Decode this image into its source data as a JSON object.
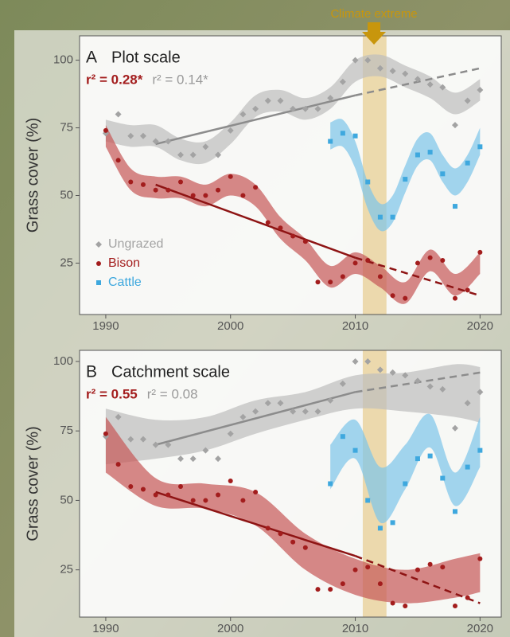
{
  "chart_data": [
    {
      "type": "scatter",
      "panel_label": "A",
      "title": "Plot scale",
      "y_label": "Grass cover (%)",
      "xlim": [
        1987.9,
        2021.7
      ],
      "ylim": [
        6,
        109
      ],
      "xticks": [
        1990,
        2000,
        2010,
        2020
      ],
      "yticks": [
        25,
        50,
        75,
        100
      ],
      "annotation": {
        "text": "Climate extreme",
        "x": 2011.5,
        "color": "#c8960c"
      },
      "highlight": {
        "x": [
          2010.6,
          2012.5
        ],
        "color": "#e8cf94"
      },
      "legend": true,
      "x": [
        1990,
        1991,
        1992,
        1993,
        1994,
        1995,
        1996,
        1997,
        1998,
        1999,
        2000,
        2001,
        2002,
        2003,
        2004,
        2005,
        2006,
        2007,
        2008,
        2009,
        2010,
        2011,
        2012,
        2013,
        2014,
        2015,
        2016,
        2017,
        2018,
        2019,
        2020
      ],
      "series": [
        {
          "name": "Ungrazed",
          "color": "#a3a3a3",
          "marker": "diamond",
          "values": [
            73,
            80,
            72,
            72,
            70,
            70,
            65,
            65,
            68,
            65,
            74,
            80,
            82,
            85,
            85,
            82,
            82,
            82,
            86,
            92,
            100,
            100,
            97,
            96,
            95,
            93,
            91,
            90,
            76,
            85,
            89
          ]
        },
        {
          "name": "Bison",
          "color": "#a31d1d",
          "marker": "circle",
          "values": [
            74,
            63,
            55,
            54,
            52,
            52,
            55,
            50,
            50,
            52,
            57,
            50,
            53,
            40,
            38,
            35,
            33,
            18,
            18,
            20,
            25,
            26,
            20,
            13,
            12,
            25,
            27,
            26,
            12,
            15,
            29
          ]
        },
        {
          "name": "Cattle",
          "color": "#3ea8de",
          "marker": "square",
          "values": [
            null,
            null,
            null,
            null,
            null,
            null,
            null,
            null,
            null,
            null,
            null,
            null,
            null,
            null,
            null,
            null,
            null,
            null,
            70,
            73,
            72,
            55,
            42,
            42,
            56,
            65,
            66,
            58,
            46,
            62,
            68
          ]
        }
      ],
      "bands": [
        {
          "color": "#bdbdbd",
          "x": [
            1990,
            1992,
            1994,
            1996,
            1998,
            2000,
            2002,
            2004,
            2006,
            2008,
            2010,
            2012,
            2014,
            2016,
            2018,
            2020
          ],
          "lower": [
            70,
            68,
            68,
            63,
            62,
            69,
            79,
            81,
            78,
            82,
            92,
            94,
            90,
            86,
            80,
            85
          ],
          "upper": [
            78,
            76,
            76,
            71,
            70,
            77,
            87,
            89,
            86,
            90,
            100,
            102,
            98,
            94,
            88,
            93
          ]
        },
        {
          "color": "#c65757",
          "x": [
            1990,
            1992,
            1994,
            1996,
            1998,
            2000,
            2002,
            2004,
            2006,
            2008,
            2010,
            2012,
            2014,
            2016,
            2018,
            2020
          ],
          "lower": [
            68,
            52,
            49,
            49,
            46,
            50,
            46,
            34,
            26,
            16,
            21,
            16,
            10,
            22,
            13,
            21
          ],
          "upper": [
            76,
            60,
            57,
            57,
            54,
            58,
            54,
            42,
            34,
            24,
            29,
            24,
            18,
            30,
            21,
            29
          ]
        },
        {
          "color": "#7cc4ea",
          "x": [
            2008,
            2009,
            2010,
            2011,
            2012,
            2013,
            2014,
            2015,
            2016,
            2017,
            2018,
            2019,
            2020
          ],
          "lower": [
            67,
            68,
            60,
            45,
            37,
            40,
            51,
            61,
            63,
            55,
            50,
            55,
            65
          ],
          "upper": [
            77,
            78,
            70,
            55,
            47,
            50,
            61,
            71,
            73,
            65,
            60,
            65,
            75
          ]
        }
      ],
      "trends": [
        {
          "color": "#8c8c8c",
          "style": "solid",
          "x": [
            1994,
            2010
          ],
          "values": [
            69,
            87
          ]
        },
        {
          "color": "#8c8c8c",
          "style": "dashed",
          "x": [
            2010,
            2020
          ],
          "values": [
            87,
            97
          ]
        },
        {
          "color": "#8e1414",
          "style": "solid",
          "x": [
            1994,
            2010
          ],
          "values": [
            54,
            27
          ]
        },
        {
          "color": "#8e1414",
          "style": "dashed",
          "x": [
            2010,
            2020
          ],
          "values": [
            27,
            13
          ]
        }
      ],
      "stats": [
        {
          "text": "r² = 0.28*",
          "color": "#a31d1d"
        },
        {
          "text": "r² = 0.14*",
          "color": "#9a9a9a"
        }
      ]
    },
    {
      "type": "scatter",
      "panel_label": "B",
      "title": "Catchment scale",
      "y_label": "Grass cover (%)",
      "xlim": [
        1987.9,
        2021.7
      ],
      "ylim": [
        8,
        104
      ],
      "xticks": [
        1990,
        2000,
        2010,
        2020
      ],
      "yticks": [
        25,
        50,
        75,
        100
      ],
      "highlight": {
        "x": [
          2010.6,
          2012.5
        ],
        "color": "#e8cf94"
      },
      "legend": false,
      "x": [
        1990,
        1991,
        1992,
        1993,
        1994,
        1995,
        1996,
        1997,
        1998,
        1999,
        2000,
        2001,
        2002,
        2003,
        2004,
        2005,
        2006,
        2007,
        2008,
        2009,
        2010,
        2011,
        2012,
        2013,
        2014,
        2015,
        2016,
        2017,
        2018,
        2019,
        2020
      ],
      "series": [
        {
          "name": "Ungrazed",
          "color": "#a3a3a3",
          "marker": "diamond",
          "values": [
            73,
            80,
            72,
            72,
            70,
            70,
            65,
            65,
            68,
            65,
            74,
            80,
            82,
            85,
            85,
            82,
            82,
            82,
            86,
            92,
            100,
            100,
            97,
            96,
            95,
            93,
            91,
            90,
            76,
            85,
            89
          ]
        },
        {
          "name": "Bison",
          "color": "#a31d1d",
          "marker": "circle",
          "values": [
            74,
            63,
            55,
            54,
            52,
            52,
            55,
            50,
            50,
            52,
            57,
            50,
            53,
            40,
            38,
            35,
            33,
            18,
            18,
            20,
            25,
            26,
            20,
            13,
            12,
            25,
            27,
            26,
            12,
            15,
            29
          ]
        },
        {
          "name": "Cattle",
          "color": "#3ea8de",
          "marker": "square",
          "values": [
            null,
            null,
            null,
            null,
            null,
            null,
            null,
            null,
            null,
            null,
            null,
            null,
            null,
            null,
            null,
            null,
            null,
            null,
            56,
            73,
            68,
            50,
            40,
            42,
            56,
            65,
            66,
            58,
            46,
            62,
            68
          ]
        }
      ],
      "bands": [
        {
          "color": "#bdbdbd",
          "x": [
            1990,
            1994,
            1998,
            2002,
            2006,
            2010,
            2014,
            2018,
            2020
          ],
          "lower": [
            63,
            65,
            68,
            74,
            79,
            83,
            82,
            80,
            78
          ],
          "upper": [
            83,
            79,
            80,
            86,
            89,
            95,
            96,
            99,
            98
          ]
        },
        {
          "color": "#c65757",
          "x": [
            1990,
            1994,
            1998,
            2002,
            2006,
            2010,
            2014,
            2018,
            2020
          ],
          "lower": [
            60,
            48,
            47,
            41,
            25,
            16,
            13,
            15,
            17
          ],
          "upper": [
            80,
            58,
            56,
            53,
            38,
            29,
            25,
            29,
            31
          ]
        },
        {
          "color": "#7cc4ea",
          "x": [
            2008,
            2010,
            2012,
            2014,
            2016,
            2018,
            2020
          ],
          "lower": [
            54,
            65,
            42,
            54,
            69,
            48,
            62
          ],
          "upper": [
            70,
            79,
            62,
            70,
            81,
            60,
            80
          ]
        }
      ],
      "trends": [
        {
          "color": "#8c8c8c",
          "style": "solid",
          "x": [
            1994,
            2010
          ],
          "values": [
            70,
            89
          ]
        },
        {
          "color": "#8c8c8c",
          "style": "dashed",
          "x": [
            2010,
            2020
          ],
          "values": [
            89,
            96
          ]
        },
        {
          "color": "#8e1414",
          "style": "solid",
          "x": [
            1994,
            2010
          ],
          "values": [
            53,
            30
          ]
        },
        {
          "color": "#8e1414",
          "style": "dashed",
          "x": [
            2010,
            2020
          ],
          "values": [
            30,
            13
          ]
        }
      ],
      "stats": [
        {
          "text": "r² = 0.55",
          "color": "#a31d1d"
        },
        {
          "text": "r² = 0.08",
          "color": "#9a9a9a"
        }
      ]
    }
  ]
}
